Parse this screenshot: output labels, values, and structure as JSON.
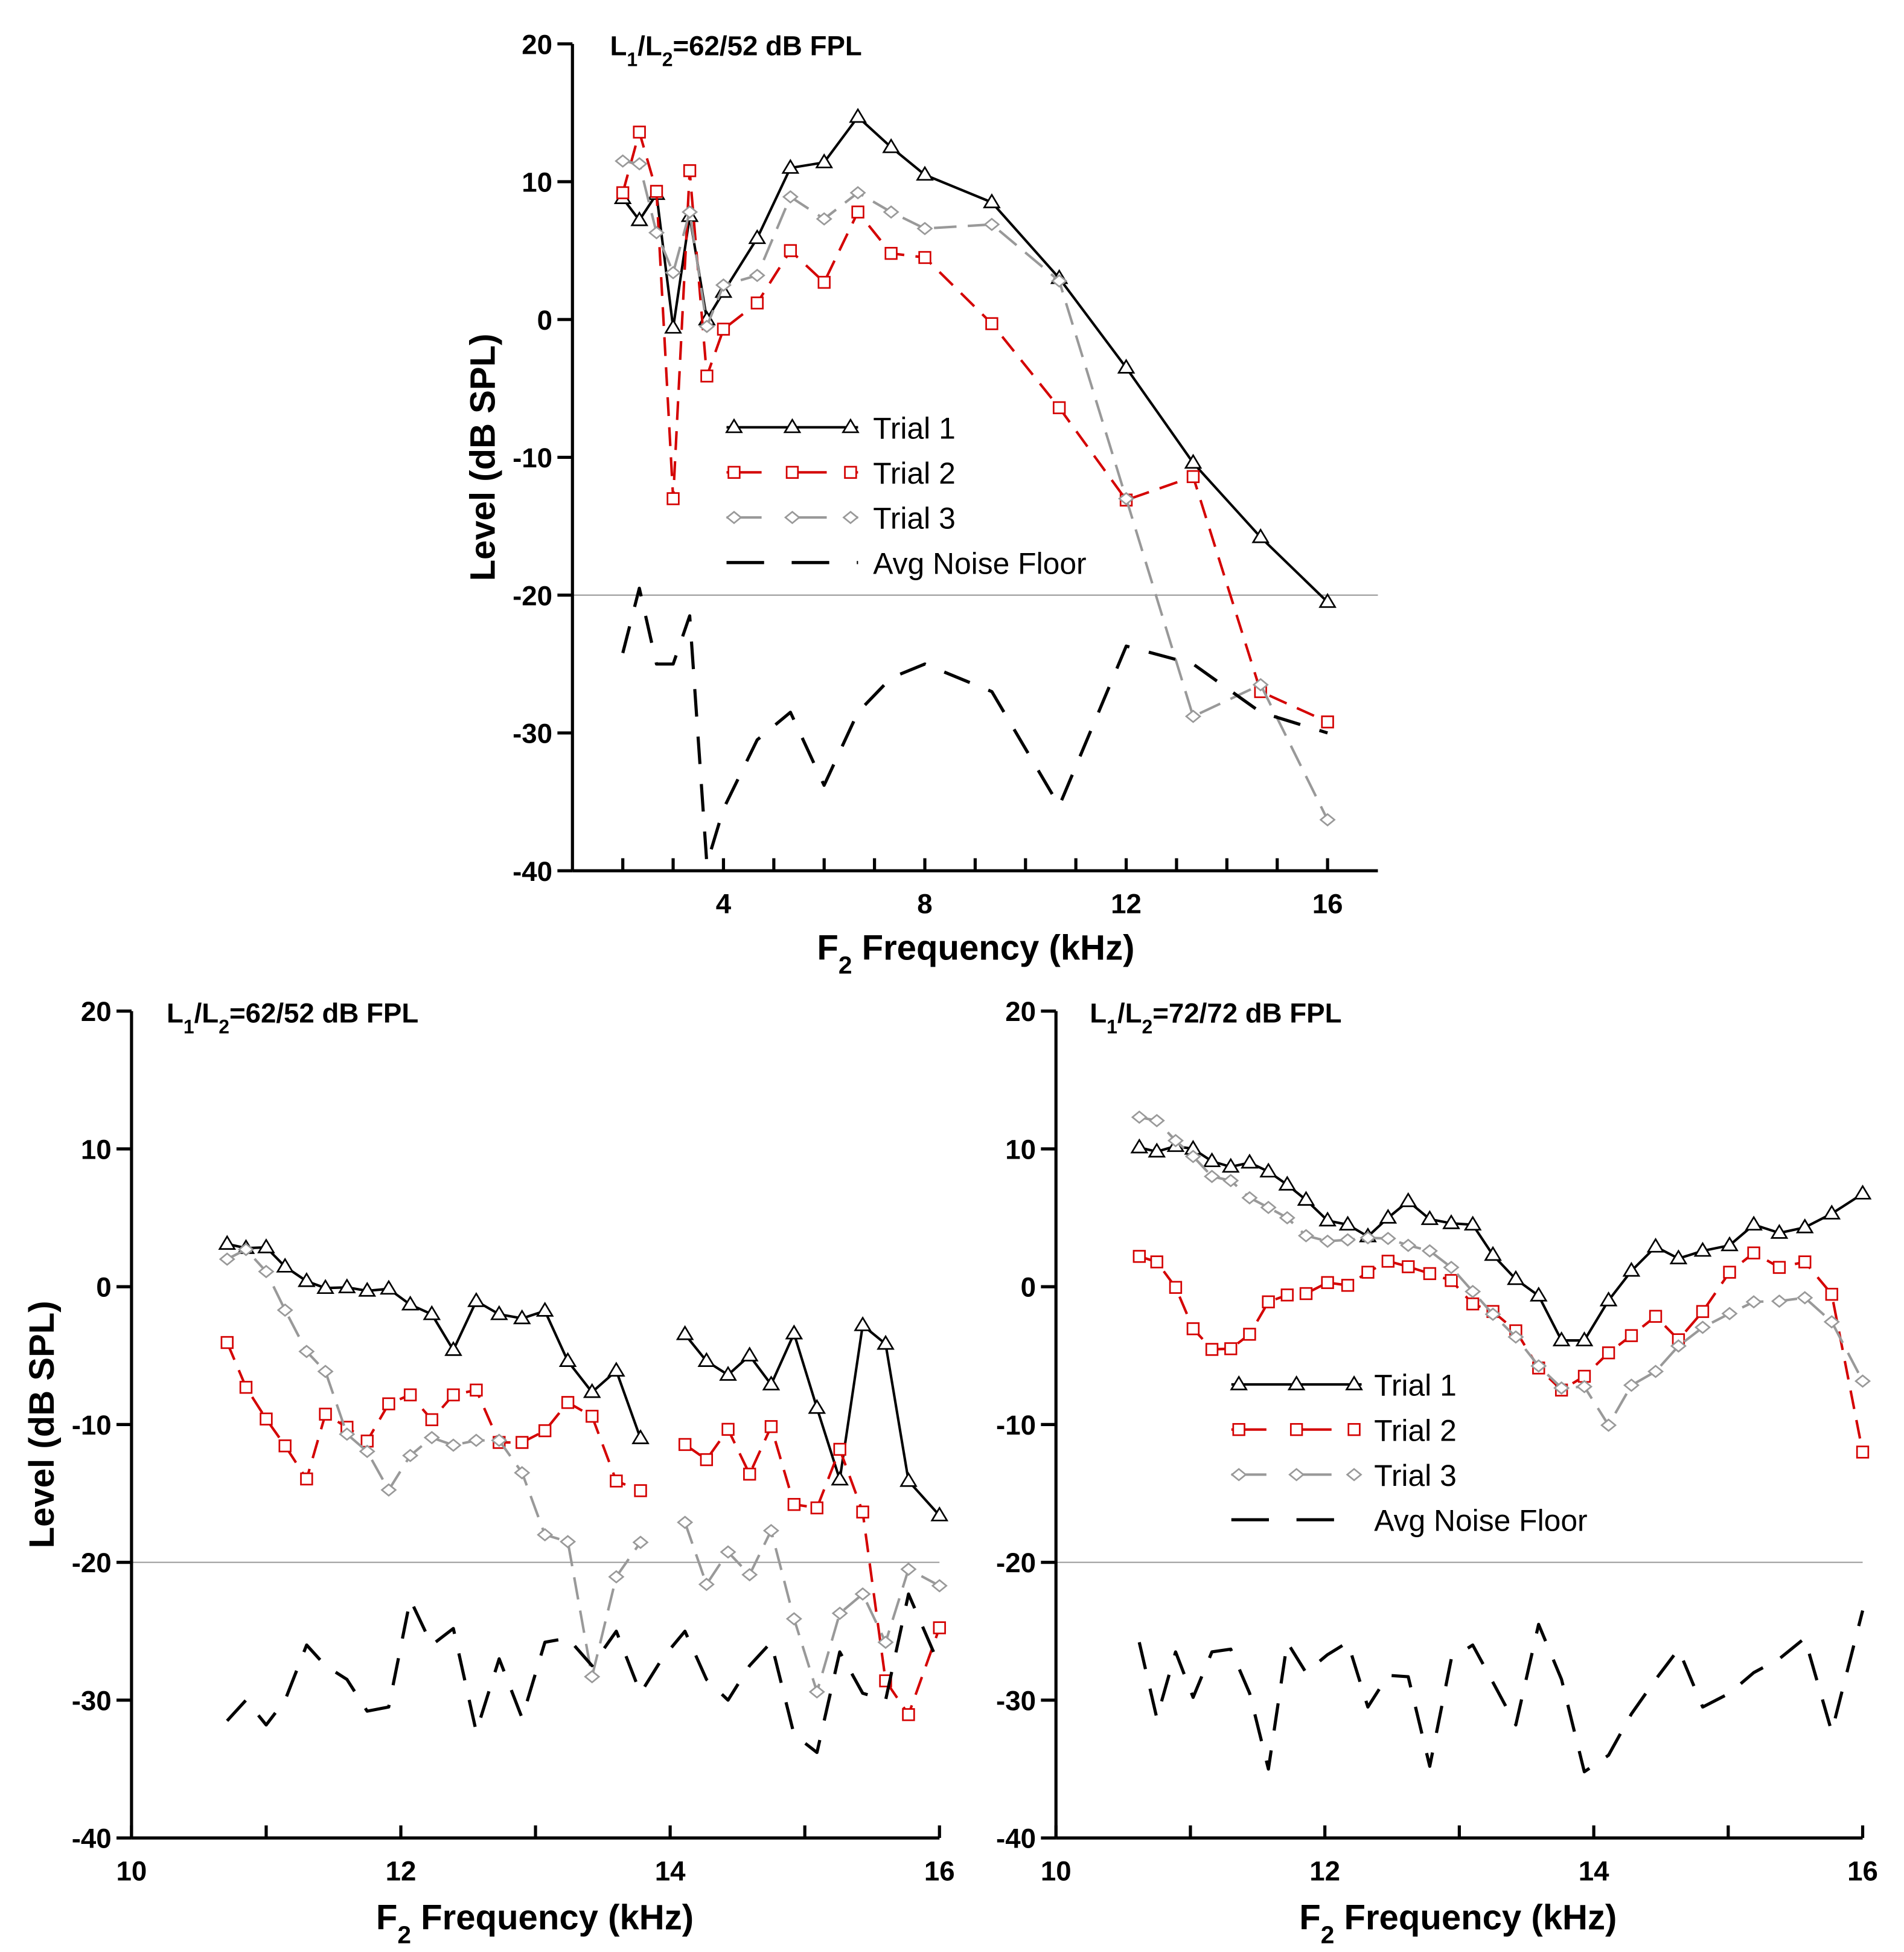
{
  "colors": {
    "trial1": "#000000",
    "trial2": "#d40000",
    "trial3": "#999999",
    "noise": "#000000",
    "reference_line": "#9a9a9a"
  },
  "chart_data": [
    {
      "type": "line",
      "title": "L1/L2=62/52 dB FPL",
      "xlabel": "F2 Frequency (kHz)",
      "ylabel": "Level (dB SPL)",
      "xlim": [
        1,
        17
      ],
      "ylim": [
        -40,
        20
      ],
      "xticks": [
        4,
        8,
        12,
        16
      ],
      "yticks": [
        -40,
        -30,
        -20,
        -10,
        0,
        10,
        20
      ],
      "reference_line_y": -20,
      "grid": false,
      "legend": {
        "placement": "center",
        "entries": [
          "Trial 1",
          "Trial 2",
          "Trial 3",
          "Avg Noise Floor"
        ]
      },
      "x": [
        2,
        2.33,
        2.67,
        3,
        3.33,
        3.67,
        4,
        4.67,
        5.33,
        6,
        6.67,
        7.33,
        8,
        9.33,
        10.67,
        12,
        13.33,
        14.67,
        16
      ],
      "series": [
        {
          "name": "Trial 1",
          "marker": "triangle",
          "values": [
            8.8,
            7.2,
            9.1,
            -0.6,
            7.5,
            0,
            2,
            5.9,
            11,
            11.4,
            14.7,
            12.5,
            10.5,
            8.5,
            3,
            -3.5,
            -10.4,
            -15.8,
            -20.5
          ]
        },
        {
          "name": "Trial 2",
          "marker": "square",
          "values": [
            9.2,
            13.6,
            9.3,
            -13,
            10.8,
            -4.1,
            -0.7,
            1.2,
            5,
            2.7,
            7.8,
            4.8,
            4.5,
            -0.3,
            -6.4,
            -13.1,
            -11.4,
            -27,
            -29.2
          ]
        },
        {
          "name": "Trial 3",
          "marker": "diamond",
          "values": [
            11.5,
            11.3,
            6.3,
            3.4,
            7.8,
            -0.5,
            2.5,
            3.2,
            8.9,
            7.3,
            9.2,
            7.8,
            6.6,
            6.9,
            2.8,
            -13,
            -28.8,
            -26.5,
            -36.3
          ]
        },
        {
          "name": "Avg Noise Floor",
          "marker": "none",
          "values": [
            -24.2,
            -19.5,
            -25,
            -25,
            -21.5,
            -39.5,
            -35.5,
            -30.5,
            -28.5,
            -33.8,
            -28.5,
            -26,
            -25,
            -27,
            -35.3,
            -23.7,
            -25,
            -28.5,
            -30
          ]
        }
      ]
    },
    {
      "type": "line",
      "title": "L1/L2=62/52 dB FPL",
      "xlabel": "F2 Frequency (kHz)",
      "ylabel": "Level (dB SPL)",
      "xlim": [
        10,
        16
      ],
      "ylim": [
        -40,
        20
      ],
      "xticks": [
        10,
        12,
        14,
        16
      ],
      "yticks": [
        -40,
        -30,
        -20,
        -10,
        0,
        10,
        20
      ],
      "reference_line_y": -20,
      "grid": false,
      "x": [
        10.71,
        10.85,
        11.0,
        11.14,
        11.3,
        11.44,
        11.6,
        11.75,
        11.91,
        12.07,
        12.23,
        12.39,
        12.56,
        12.73,
        12.9,
        13.07,
        13.24,
        13.42,
        13.6,
        13.78,
        13.94,
        14.11,
        14.27,
        14.43,
        14.59,
        14.75,
        14.92,
        15.09,
        15.26,
        15.43,
        15.6,
        15.77,
        16.0
      ],
      "series": [
        {
          "name": "Trial 1",
          "marker": "triangle",
          "values": [
            3.1,
            2.8,
            2.85,
            1.45,
            0.4,
            -0.1,
            -0.05,
            -0.3,
            -0.15,
            -1.3,
            -2.0,
            -4.6,
            -1.05,
            -2.0,
            -2.3,
            -1.75,
            -5.4,
            -7.65,
            -6.1,
            -11.0,
            null,
            -3.45,
            -5.4,
            -6.4,
            -5.0,
            -7.1,
            -3.4,
            -8.8,
            -14.0,
            -2.8,
            -4.15,
            -14.1,
            -16.6
          ]
        },
        {
          "name": "Trial 2",
          "marker": "square",
          "values": [
            -4.05,
            -7.3,
            -9.6,
            -11.55,
            -13.95,
            -9.25,
            -10.2,
            -11.2,
            -8.5,
            -7.85,
            -9.65,
            -7.85,
            -7.5,
            -11.3,
            -11.3,
            -10.45,
            -8.4,
            -9.4,
            -14.1,
            -14.8,
            null,
            -11.45,
            -12.55,
            -10.35,
            -13.6,
            -10.15,
            -15.8,
            -16.05,
            -11.8,
            -16.35,
            -28.6,
            -31.05,
            -24.75
          ]
        },
        {
          "name": "Trial 3",
          "marker": "diamond",
          "values": [
            2.0,
            2.7,
            1.1,
            -1.7,
            -4.7,
            -6.15,
            -10.7,
            -11.95,
            -14.75,
            -12.25,
            -10.95,
            -11.5,
            -11.15,
            -11.15,
            -13.5,
            -18.0,
            -18.5,
            -28.3,
            -21.05,
            -18.55,
            null,
            -17.1,
            -21.6,
            -19.25,
            -20.9,
            -17.7,
            -24.1,
            -29.4,
            -23.7,
            -22.3,
            -25.8,
            -20.5,
            -21.7
          ]
        },
        {
          "name": "Avg Noise Floor",
          "marker": "none",
          "values": [
            -31.5,
            -30,
            -31.8,
            -30,
            -26,
            -27.5,
            -28.5,
            -30.8,
            -30.5,
            -22.7,
            -26,
            -24.8,
            -32.3,
            -27,
            -31.3,
            -25.8,
            -25.5,
            -27.5,
            -25,
            -29.5,
            -27,
            -25,
            -28.5,
            -30,
            -27.5,
            -25.8,
            -32.5,
            -33.8,
            -26.5,
            -29.5,
            -30,
            -22.3,
            -27.5
          ]
        }
      ]
    },
    {
      "type": "line",
      "title": "L1/L2=72/72 dB FPL",
      "xlabel": "F2 Frequency (kHz)",
      "xlim": [
        10,
        16
      ],
      "ylim": [
        -40,
        20
      ],
      "xticks": [
        10,
        12,
        14,
        16
      ],
      "yticks": [
        -40,
        -30,
        -20,
        -10,
        0,
        10,
        20
      ],
      "reference_line_y": -20,
      "grid": false,
      "legend": {
        "placement": "lower-center",
        "entries": [
          "Trial 1",
          "Trial 2",
          "Trial 3",
          "Avg Noise Floor"
        ]
      },
      "x": [
        10.62,
        10.75,
        10.89,
        11.02,
        11.16,
        11.3,
        11.44,
        11.58,
        11.72,
        11.86,
        12.02,
        12.17,
        12.32,
        12.47,
        12.62,
        12.78,
        12.94,
        13.1,
        13.25,
        13.42,
        13.59,
        13.76,
        13.93,
        14.11,
        14.28,
        14.46,
        14.63,
        14.81,
        15.01,
        15.19,
        15.38,
        15.57,
        15.77,
        16.0
      ],
      "series": [
        {
          "name": "Trial 1",
          "marker": "triangle",
          "values": [
            10.1,
            9.8,
            10.2,
            10.0,
            9.1,
            8.7,
            9.0,
            8.35,
            7.4,
            6.3,
            4.8,
            4.5,
            3.65,
            5.0,
            6.2,
            4.9,
            4.6,
            4.5,
            2.3,
            0.55,
            -0.65,
            -3.9,
            -3.9,
            -1.0,
            1.15,
            2.9,
            2.05,
            2.6,
            3.0,
            4.5,
            3.9,
            4.3,
            5.3,
            6.75
          ]
        },
        {
          "name": "Trial 2",
          "marker": "square",
          "values": [
            2.2,
            1.8,
            -0.05,
            -3.05,
            -4.55,
            -4.5,
            -3.45,
            -1.1,
            -0.6,
            -0.5,
            0.3,
            0.1,
            1.05,
            1.85,
            1.45,
            0.95,
            0.45,
            -1.25,
            -1.8,
            -3.2,
            -5.9,
            -7.5,
            -6.5,
            -4.8,
            -3.55,
            -2.15,
            -3.85,
            -1.8,
            1.05,
            2.45,
            1.4,
            1.8,
            -0.55,
            -12.0
          ]
        },
        {
          "name": "Trial 3",
          "marker": "diamond",
          "values": [
            12.3,
            12.05,
            10.6,
            9.45,
            8.0,
            7.7,
            6.45,
            5.75,
            5.0,
            3.7,
            3.3,
            3.4,
            3.55,
            3.5,
            3.0,
            2.6,
            1.4,
            -0.35,
            -2.0,
            -3.65,
            -5.75,
            -7.35,
            -7.25,
            -10.05,
            -7.15,
            -6.15,
            -4.3,
            -2.95,
            -1.95,
            -1.1,
            -1.05,
            -0.8,
            -2.55,
            -6.85
          ]
        },
        {
          "name": "Avg Noise Floor",
          "marker": "none",
          "values": [
            -25.8,
            -31.3,
            -26.5,
            -29.8,
            -26.5,
            -26.3,
            -29.5,
            -35,
            -25.8,
            -28,
            -26.7,
            -25.8,
            -30.5,
            -28.2,
            -28.3,
            -34.8,
            -27,
            -26,
            -28.7,
            -31.8,
            -24.5,
            -28.5,
            -35.2,
            -34,
            -31,
            -28.5,
            -26.3,
            -30.5,
            -29.5,
            -28,
            -27,
            -25.5,
            -32.3,
            -23.5
          ]
        }
      ]
    }
  ]
}
